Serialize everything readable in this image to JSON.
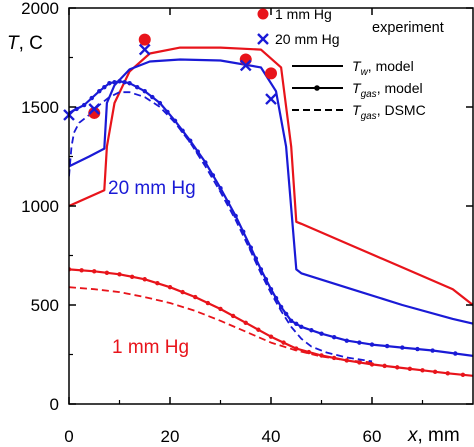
{
  "chart_data": {
    "type": "line",
    "xlim": [
      0,
      80
    ],
    "ylim": [
      0,
      2000
    ],
    "x_ticks": [
      0,
      20,
      40,
      60
    ],
    "y_ticks": [
      0,
      500,
      1000,
      1500,
      2000
    ],
    "x_tick_labels": [
      "0",
      "20",
      "40",
      "60"
    ],
    "y_tick_labels": [
      "0",
      "500",
      "1000",
      "1500",
      "2000"
    ],
    "xlabel_var": "x",
    "xlabel_unit": ", mm",
    "ylabel_var": "T",
    "ylabel_unit": ", C",
    "legend": {
      "placement": "top-right",
      "markers": [
        {
          "label": "1 mm Hg",
          "marker": "circle",
          "color": "#e8141b"
        },
        {
          "label": "20 mm Hg",
          "marker": "x",
          "color": "#1a1ad6"
        }
      ],
      "title": "experiment",
      "lines": [
        {
          "symbol": "T",
          "sub": "w",
          "suffix": ", model",
          "style": "solid"
        },
        {
          "symbol": "T",
          "sub": "gas",
          "suffix": ", model",
          "style": "solid-dot"
        },
        {
          "symbol": "T",
          "sub": "gas",
          "suffix": ", DSMC",
          "style": "dashed"
        }
      ]
    },
    "annotations": [
      {
        "text": "20 mm Hg",
        "color": "#1a1ad6"
      },
      {
        "text": "1 mm Hg",
        "color": "#e8141b"
      }
    ],
    "colors": {
      "red": "#e8141b",
      "blue": "#1a1ad6"
    },
    "series": [
      {
        "color": "#e8141b",
        "style": "solid",
        "x": [
          0,
          7,
          7.5,
          9,
          12,
          16,
          22,
          30,
          38,
          42,
          44,
          45,
          46,
          56,
          66,
          76,
          81
        ],
        "y": [
          1000,
          1080,
          1300,
          1520,
          1680,
          1770,
          1800,
          1800,
          1790,
          1700,
          1300,
          920,
          910,
          800,
          690,
          580,
          480
        ]
      },
      {
        "color": "#1a1ad6",
        "style": "solid",
        "x": [
          0,
          4,
          7,
          7.5,
          9,
          12,
          16,
          22,
          30,
          38,
          41,
          43,
          44,
          45,
          46,
          56,
          66,
          76,
          81
        ],
        "y": [
          1200,
          1250,
          1290,
          1520,
          1610,
          1690,
          1730,
          1740,
          1735,
          1700,
          1580,
          1300,
          990,
          680,
          660,
          580,
          500,
          430,
          400
        ]
      },
      {
        "color": "#e8141b",
        "style": "solid-dot",
        "x": [
          0,
          5,
          10,
          15,
          20,
          25,
          30,
          35,
          40,
          45,
          50,
          55,
          60,
          65,
          70,
          75,
          81
        ],
        "y": [
          680,
          670,
          655,
          630,
          590,
          540,
          480,
          410,
          340,
          280,
          245,
          220,
          200,
          185,
          170,
          155,
          140
        ]
      },
      {
        "color": "#1a1ad6",
        "style": "solid-dot",
        "x": [
          0,
          3,
          6,
          8,
          10,
          12,
          15,
          18,
          21,
          24,
          27,
          30,
          33,
          36,
          38,
          40,
          42,
          44,
          46,
          50,
          55,
          60,
          66,
          72,
          81
        ],
        "y": [
          1470,
          1510,
          1580,
          1620,
          1630,
          1620,
          1580,
          1520,
          1430,
          1330,
          1220,
          1090,
          950,
          790,
          680,
          580,
          490,
          420,
          390,
          355,
          320,
          300,
          285,
          270,
          240
        ]
      },
      {
        "color": "#e8141b",
        "style": "dashed",
        "x": [
          0,
          5,
          10,
          15,
          20,
          25,
          30,
          35,
          40,
          45,
          50,
          55,
          60
        ],
        "y": [
          590,
          580,
          565,
          540,
          510,
          470,
          420,
          365,
          310,
          270,
          240,
          220,
          210
        ]
      },
      {
        "color": "#1a1ad6",
        "style": "dashed",
        "x": [
          0,
          0.5,
          1,
          2,
          4,
          6,
          8,
          10,
          12,
          15,
          18,
          21,
          24,
          27,
          30,
          33,
          36,
          38,
          40,
          42,
          44,
          46,
          48,
          51,
          55,
          60
        ],
        "y": [
          1150,
          1300,
          1370,
          1420,
          1460,
          1510,
          1550,
          1575,
          1575,
          1550,
          1500,
          1420,
          1320,
          1200,
          1070,
          930,
          770,
          660,
          560,
          470,
          390,
          330,
          290,
          260,
          235,
          215
        ]
      }
    ],
    "experiment": [
      {
        "marker": "circle",
        "color": "#e8141b",
        "label": "1 mm Hg",
        "x": [
          5,
          15,
          35,
          40
        ],
        "y": [
          1470,
          1840,
          1740,
          1670
        ]
      },
      {
        "marker": "x",
        "color": "#1a1ad6",
        "label": "20 mm Hg",
        "x": [
          0,
          5,
          15,
          35,
          40
        ],
        "y": [
          1460,
          1490,
          1790,
          1710,
          1540
        ]
      }
    ]
  }
}
